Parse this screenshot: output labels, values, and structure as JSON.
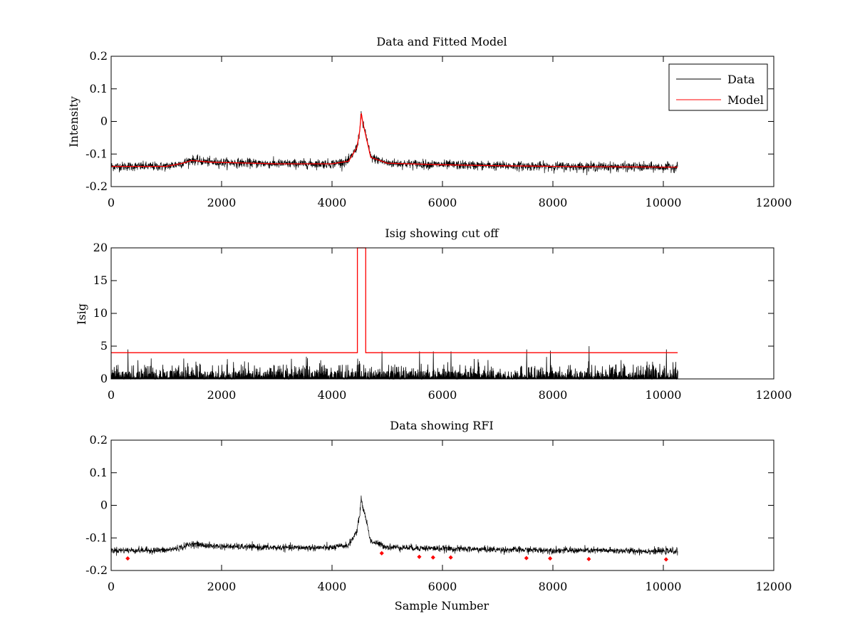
{
  "chart_data": [
    {
      "type": "line",
      "title": "Data and Fitted Model",
      "xlabel": "",
      "ylabel": "Intensity",
      "xlim": [
        0,
        12000
      ],
      "ylim": [
        -0.2,
        0.2
      ],
      "xticks": [
        0,
        2000,
        4000,
        6000,
        8000,
        10000,
        12000
      ],
      "yticks": [
        -0.2,
        -0.1,
        0,
        0.1,
        0.2
      ],
      "xtick_labels": [
        "0",
        "2000",
        "4000",
        "6000",
        "8000",
        "10000",
        "12000"
      ],
      "ytick_labels": [
        "-0.2",
        "-0.1",
        "0",
        "0.1",
        "0.2"
      ],
      "legend": {
        "position": "top-right",
        "entries": [
          "Data",
          "Model"
        ]
      },
      "series": [
        {
          "name": "Data",
          "color": "#000000",
          "kind": "noisy",
          "noise": 0.007,
          "x": [
            0,
            1000,
            1300,
            1450,
            1550,
            1800,
            3000,
            4000,
            4300,
            4450,
            4500,
            4530,
            4560,
            4600,
            4700,
            5000,
            6000,
            7000,
            8000,
            9000,
            10000,
            10260
          ],
          "y": [
            -0.138,
            -0.138,
            -0.128,
            -0.118,
            -0.12,
            -0.125,
            -0.13,
            -0.13,
            -0.122,
            -0.08,
            -0.03,
            0.025,
            -0.01,
            -0.03,
            -0.11,
            -0.128,
            -0.133,
            -0.136,
            -0.138,
            -0.139,
            -0.141,
            -0.14
          ]
        },
        {
          "name": "Model",
          "color": "#ff0000",
          "kind": "smooth",
          "x": [
            0,
            1000,
            1300,
            1450,
            1550,
            1800,
            3000,
            4000,
            4300,
            4450,
            4500,
            4530,
            4560,
            4600,
            4700,
            5000,
            6000,
            7000,
            8000,
            9000,
            10000,
            10260
          ],
          "y": [
            -0.138,
            -0.138,
            -0.128,
            -0.12,
            -0.121,
            -0.125,
            -0.13,
            -0.13,
            -0.122,
            -0.08,
            -0.03,
            0.025,
            -0.005,
            -0.035,
            -0.11,
            -0.128,
            -0.133,
            -0.136,
            -0.138,
            -0.139,
            -0.14,
            -0.14
          ]
        }
      ]
    },
    {
      "type": "line",
      "title": "Isig showing cut off",
      "xlabel": "",
      "ylabel": "Isig",
      "xlim": [
        0,
        12000
      ],
      "ylim": [
        0,
        20
      ],
      "xticks": [
        0,
        2000,
        4000,
        6000,
        8000,
        10000,
        12000
      ],
      "yticks": [
        0,
        5,
        10,
        15,
        20
      ],
      "xtick_labels": [
        "0",
        "2000",
        "4000",
        "6000",
        "8000",
        "10000",
        "12000"
      ],
      "ytick_labels": [
        "0",
        "5",
        "10",
        "15",
        "20"
      ],
      "series": [
        {
          "name": "Isig",
          "color": "#000000",
          "kind": "spiky",
          "x_range": [
            0,
            10260
          ],
          "spikes": [
            [
              300,
              4.5
            ],
            [
              4900,
              4.2
            ],
            [
              5580,
              4.2
            ],
            [
              5830,
              4.2
            ],
            [
              6150,
              4.2
            ],
            [
              7520,
              4.5
            ],
            [
              7950,
              4.3
            ],
            [
              8650,
              5.0
            ],
            [
              10050,
              4.5
            ]
          ]
        },
        {
          "name": "Cut off",
          "color": "#ff0000",
          "kind": "step",
          "x": [
            0,
            4460,
            4460,
            4610,
            4610,
            10260
          ],
          "y": [
            4,
            4,
            20,
            20,
            4,
            4
          ]
        }
      ]
    },
    {
      "type": "line",
      "title": "Data showing RFI",
      "xlabel": "Sample Number",
      "ylabel": "",
      "xlim": [
        0,
        12000
      ],
      "ylim": [
        -0.2,
        0.2
      ],
      "xticks": [
        0,
        2000,
        4000,
        6000,
        8000,
        10000,
        12000
      ],
      "yticks": [
        -0.2,
        -0.1,
        0,
        0.1,
        0.2
      ],
      "xtick_labels": [
        "0",
        "2000",
        "4000",
        "6000",
        "8000",
        "10000",
        "12000"
      ],
      "ytick_labels": [
        "-0.2",
        "-0.1",
        "0",
        "0.1",
        "0.2"
      ],
      "series": [
        {
          "name": "Data",
          "color": "#000000",
          "kind": "noisy",
          "noise": 0.005,
          "x": [
            0,
            1000,
            1300,
            1450,
            1550,
            1800,
            3000,
            4000,
            4300,
            4450,
            4500,
            4530,
            4560,
            4600,
            4700,
            5000,
            6000,
            7000,
            8000,
            9000,
            10000,
            10260
          ],
          "y": [
            -0.138,
            -0.138,
            -0.128,
            -0.118,
            -0.12,
            -0.125,
            -0.13,
            -0.13,
            -0.122,
            -0.08,
            -0.03,
            0.025,
            -0.01,
            -0.03,
            -0.11,
            -0.128,
            -0.133,
            -0.136,
            -0.138,
            -0.139,
            -0.141,
            -0.14
          ]
        },
        {
          "name": "RFI",
          "color": "#ff0000",
          "kind": "markers",
          "x": [
            300,
            4900,
            5580,
            5830,
            6150,
            7520,
            7950,
            8650,
            10050
          ],
          "y": [
            -0.163,
            -0.147,
            -0.158,
            -0.16,
            -0.16,
            -0.162,
            -0.163,
            -0.165,
            -0.166
          ]
        }
      ]
    }
  ]
}
